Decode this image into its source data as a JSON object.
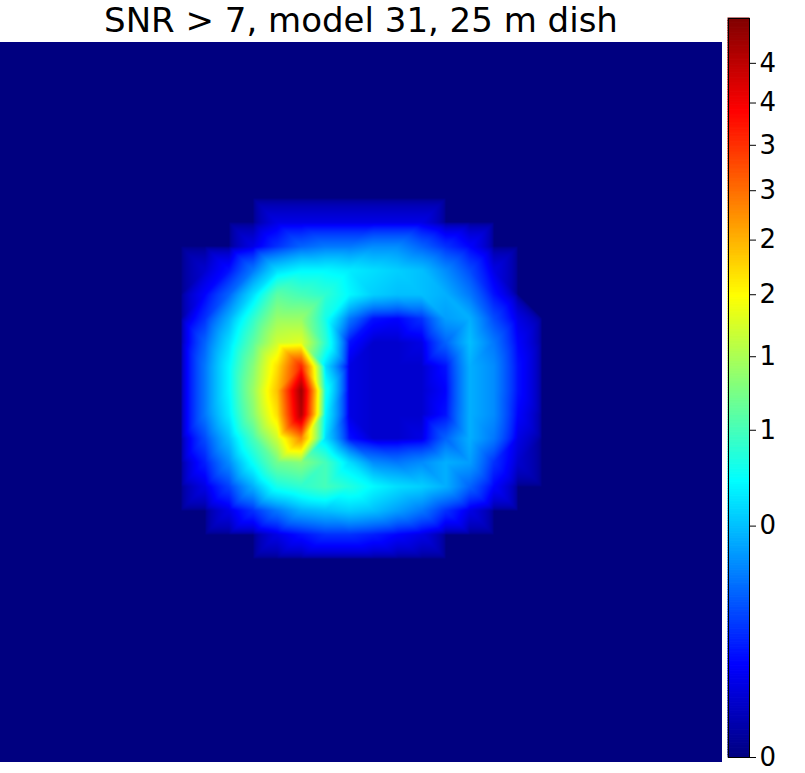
{
  "chart_data": {
    "type": "heatmap",
    "title": "SNR > 7, model 31, 25 m dish",
    "color": "jet",
    "tick_labels": false,
    "cells": [
      [
        0,
        0,
        0,
        0,
        0,
        0,
        0,
        0,
        0,
        0,
        0,
        0,
        0,
        0,
        0,
        0,
        0,
        0,
        0,
        0,
        0,
        0,
        0,
        0,
        0,
        0,
        0,
        0,
        0,
        0
      ],
      [
        0,
        0,
        0,
        0,
        0,
        0,
        0,
        0,
        0,
        0,
        0,
        0,
        0,
        0,
        0,
        0,
        0,
        0,
        0,
        0,
        0,
        0,
        0,
        0,
        0,
        0,
        0,
        0,
        0,
        0
      ],
      [
        0,
        0,
        0,
        0,
        0,
        0,
        0,
        0,
        0,
        0,
        0,
        0,
        0,
        0,
        0,
        0,
        0,
        0,
        0,
        0,
        0,
        0,
        0,
        0,
        0,
        0,
        0,
        0,
        0,
        0
      ],
      [
        0,
        0,
        0,
        0,
        0,
        0,
        0,
        0,
        0,
        0,
        0,
        0,
        0,
        0,
        0,
        0,
        0,
        0,
        0,
        0,
        0,
        0,
        0,
        0,
        0,
        0,
        0,
        0,
        0,
        0
      ],
      [
        0,
        0,
        0,
        0,
        0,
        0,
        0,
        0,
        0,
        0,
        0,
        0,
        0,
        0,
        0,
        0,
        0,
        0,
        0,
        0,
        0,
        0,
        0,
        0,
        0,
        0,
        0,
        0,
        0,
        0
      ],
      [
        0,
        0,
        0,
        0,
        0,
        0,
        0,
        0,
        0,
        0,
        0,
        0,
        0,
        0,
        0,
        0,
        0,
        0,
        0,
        0,
        0,
        0,
        0,
        0,
        0,
        0,
        0,
        0,
        0,
        0
      ],
      [
        0,
        0,
        0,
        0,
        0,
        0,
        0,
        0,
        0,
        0,
        0,
        0,
        0,
        0,
        0,
        0,
        0,
        0,
        0,
        0,
        0,
        0,
        0,
        0,
        0,
        0,
        0,
        0,
        0,
        0
      ],
      [
        0,
        0,
        0,
        0,
        0,
        0,
        0,
        0,
        0,
        0,
        0,
        0.05,
        0.05,
        0.05,
        0.05,
        0.05,
        0.05,
        0.05,
        0,
        0,
        0,
        0,
        0,
        0,
        0,
        0,
        0,
        0,
        0,
        0
      ],
      [
        0,
        0,
        0,
        0,
        0,
        0,
        0,
        0,
        0,
        0,
        0.05,
        0.15,
        0.25,
        0.3,
        0.3,
        0.35,
        0.35,
        0.25,
        0.15,
        0.08,
        0,
        0,
        0,
        0,
        0,
        0,
        0,
        0,
        0,
        0
      ],
      [
        0,
        0,
        0,
        0,
        0,
        0,
        0,
        0,
        0.03,
        0.1,
        0.3,
        0.6,
        0.7,
        0.7,
        0.65,
        0.6,
        0.55,
        0.5,
        0.35,
        0.2,
        0.05,
        0,
        0,
        0,
        0,
        0,
        0,
        0,
        0,
        0
      ],
      [
        0,
        0,
        0,
        0,
        0,
        0,
        0,
        0,
        0.08,
        0.25,
        0.6,
        1.1,
        1.0,
        0.9,
        0.7,
        0.55,
        0.5,
        0.5,
        0.45,
        0.3,
        0.1,
        0,
        0,
        0,
        0,
        0,
        0,
        0,
        0,
        0
      ],
      [
        0,
        0,
        0,
        0,
        0,
        0,
        0,
        0,
        0.15,
        0.45,
        0.9,
        1.4,
        1.4,
        0.8,
        0.3,
        0.1,
        0.08,
        0.15,
        0.4,
        0.45,
        0.2,
        0.05,
        0,
        0,
        0,
        0,
        0,
        0,
        0,
        0
      ],
      [
        0,
        0,
        0,
        0,
        0,
        0,
        0,
        0,
        0.25,
        0.6,
        1.1,
        1.7,
        1.8,
        0.9,
        0.1,
        0.03,
        0.03,
        0.05,
        0.25,
        0.5,
        0.3,
        0.08,
        0,
        0,
        0,
        0,
        0,
        0,
        0,
        0
      ],
      [
        0,
        0,
        0,
        0,
        0,
        0,
        0,
        0,
        0.3,
        0.7,
        1.3,
        2.2,
        3.6,
        0.6,
        0.05,
        0.03,
        0.03,
        0.03,
        0.1,
        0.45,
        0.35,
        0.1,
        0,
        0,
        0,
        0,
        0,
        0,
        0,
        0
      ],
      [
        0,
        0,
        0,
        0,
        0,
        0,
        0,
        0,
        0.3,
        0.7,
        1.4,
        2.4,
        4.8,
        0.8,
        0.05,
        0.03,
        0.03,
        0.03,
        0.08,
        0.45,
        0.35,
        0.1,
        0,
        0,
        0,
        0,
        0,
        0,
        0,
        0
      ],
      [
        0,
        0,
        0,
        0,
        0,
        0,
        0,
        0,
        0.3,
        0.65,
        1.3,
        2.2,
        4.6,
        0.7,
        0.05,
        0.03,
        0.03,
        0.03,
        0.1,
        0.45,
        0.35,
        0.08,
        0,
        0,
        0,
        0,
        0,
        0,
        0,
        0
      ],
      [
        0,
        0,
        0,
        0,
        0,
        0,
        0,
        0,
        0.2,
        0.5,
        1.0,
        1.7,
        2.8,
        0.6,
        0.1,
        0.03,
        0.03,
        0.05,
        0.25,
        0.45,
        0.3,
        0.05,
        0,
        0,
        0,
        0,
        0,
        0,
        0,
        0
      ],
      [
        0,
        0,
        0,
        0,
        0,
        0,
        0,
        0,
        0.12,
        0.35,
        0.75,
        1.2,
        1.3,
        1.0,
        0.6,
        0.35,
        0.3,
        0.35,
        0.45,
        0.4,
        0.15,
        0.03,
        0,
        0,
        0,
        0,
        0,
        0,
        0,
        0
      ],
      [
        0,
        0,
        0,
        0,
        0,
        0,
        0,
        0,
        0.05,
        0.18,
        0.45,
        0.8,
        0.9,
        1.0,
        0.85,
        0.7,
        0.6,
        0.55,
        0.45,
        0.25,
        0.08,
        0,
        0,
        0,
        0,
        0,
        0,
        0,
        0,
        0
      ],
      [
        0,
        0,
        0,
        0,
        0,
        0,
        0,
        0,
        0,
        0.05,
        0.15,
        0.3,
        0.45,
        0.5,
        0.55,
        0.5,
        0.4,
        0.3,
        0.15,
        0.05,
        0,
        0,
        0,
        0,
        0,
        0,
        0,
        0,
        0,
        0
      ],
      [
        0,
        0,
        0,
        0,
        0,
        0,
        0,
        0,
        0,
        0,
        0,
        0.05,
        0.1,
        0.15,
        0.15,
        0.12,
        0.08,
        0.05,
        0,
        0,
        0,
        0,
        0,
        0,
        0,
        0,
        0,
        0,
        0,
        0
      ],
      [
        0,
        0,
        0,
        0,
        0,
        0,
        0,
        0,
        0,
        0,
        0,
        0,
        0,
        0,
        0,
        0,
        0,
        0,
        0,
        0,
        0,
        0,
        0,
        0,
        0,
        0,
        0,
        0,
        0,
        0
      ],
      [
        0,
        0,
        0,
        0,
        0,
        0,
        0,
        0,
        0,
        0,
        0,
        0,
        0,
        0,
        0,
        0,
        0,
        0,
        0,
        0,
        0,
        0,
        0,
        0,
        0,
        0,
        0,
        0,
        0,
        0
      ],
      [
        0,
        0,
        0,
        0,
        0,
        0,
        0,
        0,
        0,
        0,
        0,
        0,
        0,
        0,
        0,
        0,
        0,
        0,
        0,
        0,
        0,
        0,
        0,
        0,
        0,
        0,
        0,
        0,
        0,
        0
      ],
      [
        0,
        0,
        0,
        0,
        0,
        0,
        0,
        0,
        0,
        0,
        0,
        0,
        0,
        0,
        0,
        0,
        0,
        0,
        0,
        0,
        0,
        0,
        0,
        0,
        0,
        0,
        0,
        0,
        0,
        0
      ],
      [
        0,
        0,
        0,
        0,
        0,
        0,
        0,
        0,
        0,
        0,
        0,
        0,
        0,
        0,
        0,
        0,
        0,
        0,
        0,
        0,
        0,
        0,
        0,
        0,
        0,
        0,
        0,
        0,
        0,
        0
      ],
      [
        0,
        0,
        0,
        0,
        0,
        0,
        0,
        0,
        0,
        0,
        0,
        0,
        0,
        0,
        0,
        0,
        0,
        0,
        0,
        0,
        0,
        0,
        0,
        0,
        0,
        0,
        0,
        0,
        0,
        0
      ],
      [
        0,
        0,
        0,
        0,
        0,
        0,
        0,
        0,
        0,
        0,
        0,
        0,
        0,
        0,
        0,
        0,
        0,
        0,
        0,
        0,
        0,
        0,
        0,
        0,
        0,
        0,
        0,
        0,
        0,
        0
      ],
      [
        0,
        0,
        0,
        0,
        0,
        0,
        0,
        0,
        0,
        0,
        0,
        0,
        0,
        0,
        0,
        0,
        0,
        0,
        0,
        0,
        0,
        0,
        0,
        0,
        0,
        0,
        0,
        0,
        0,
        0
      ],
      [
        0,
        0,
        0,
        0,
        0,
        0,
        0,
        0,
        0,
        0,
        0,
        0,
        0,
        0,
        0,
        0,
        0,
        0,
        0,
        0,
        0,
        0,
        0,
        0,
        0,
        0,
        0,
        0,
        0,
        0
      ]
    ],
    "colorbar": {
      "range": [
        0,
        5.1
      ],
      "ticks": [
        0,
        {
          "value": 0.5,
          "label": "0"
        },
        1,
        {
          "value": 1.5,
          "label": "1"
        },
        2,
        {
          "value": 2.5,
          "label": "2"
        },
        3,
        {
          "value": 3.5,
          "label": "3"
        },
        4,
        {
          "value": 4.5,
          "label": "4"
        }
      ]
    }
  }
}
